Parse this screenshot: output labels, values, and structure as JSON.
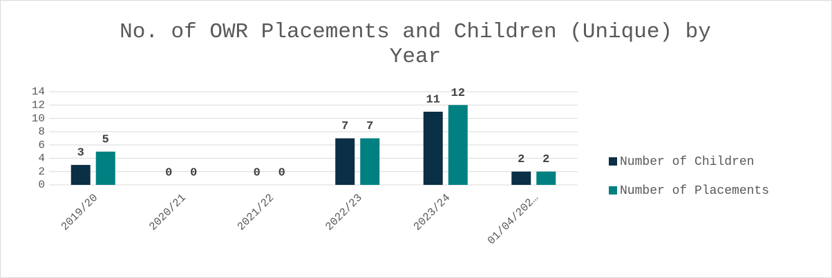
{
  "chart_data": {
    "type": "bar",
    "title": "No. of OWR Placements and Children (Unique) by Year",
    "categories": [
      "2019/20",
      "2020/21",
      "2021/22",
      "2022/23",
      "2023/24",
      "01/04/202…"
    ],
    "series": [
      {
        "name": "Number of Children",
        "color": "#0b2f44",
        "values": [
          3,
          0,
          0,
          7,
          11,
          2
        ]
      },
      {
        "name": "Number of Placements",
        "color": "#008080",
        "values": [
          5,
          0,
          0,
          7,
          12,
          2
        ]
      }
    ],
    "ylim": [
      0,
      14
    ],
    "yticks": [
      0,
      2,
      4,
      6,
      8,
      10,
      12,
      14
    ],
    "grid": true,
    "legend": "right"
  }
}
